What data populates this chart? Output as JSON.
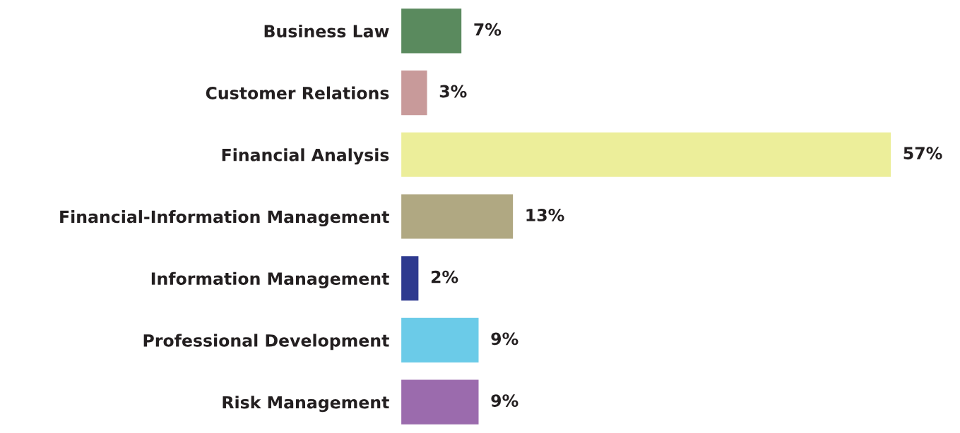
{
  "chart_data": {
    "type": "bar",
    "orientation": "horizontal",
    "categories": [
      "Business Law",
      "Customer Relations",
      "Financial Analysis",
      "Financial-Information Management",
      "Information Management",
      "Professional Development",
      "Risk Management"
    ],
    "values": [
      7,
      3,
      57,
      13,
      2,
      9,
      9
    ],
    "value_labels": [
      "7%",
      "3%",
      "57%",
      "13%",
      "2%",
      "9%",
      "9%"
    ],
    "colors": [
      "#5a8a5e",
      "#c89a9a",
      "#ecee9a",
      "#b0a882",
      "#2e3a8f",
      "#6bcbe8",
      "#9b6bad"
    ],
    "grid": false,
    "legend": false,
    "tick_labels": "y"
  }
}
